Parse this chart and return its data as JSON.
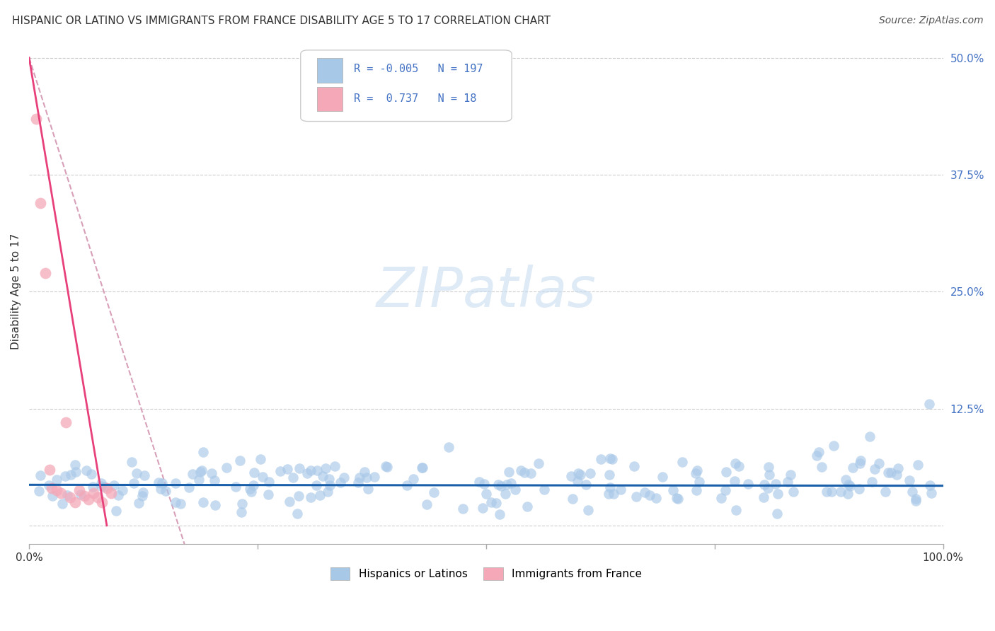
{
  "title": "HISPANIC OR LATINO VS IMMIGRANTS FROM FRANCE DISABILITY AGE 5 TO 17 CORRELATION CHART",
  "source": "Source: ZipAtlas.com",
  "ylabel": "Disability Age 5 to 17",
  "xlim": [
    0.0,
    1.0
  ],
  "ylim": [
    -0.02,
    0.52
  ],
  "yticks": [
    0.0,
    0.125,
    0.25,
    0.375,
    0.5
  ],
  "yticklabels": [
    "",
    "12.5%",
    "25.0%",
    "37.5%",
    "50.0%"
  ],
  "xticks": [
    0.0,
    0.25,
    0.5,
    0.75,
    1.0
  ],
  "xticklabels": [
    "0.0%",
    "",
    "",
    "",
    "100.0%"
  ],
  "blue_R": -0.005,
  "blue_N": 197,
  "pink_R": 0.737,
  "pink_N": 18,
  "blue_color": "#a8c8e8",
  "pink_color": "#f4a8b8",
  "blue_line_color": "#1a5faa",
  "pink_line_color": "#e8407a",
  "pink_dash_color": "#d8a0b8",
  "legend_blue_label": "Hispanics or Latinos",
  "legend_pink_label": "Immigrants from France",
  "grid_color": "#cccccc",
  "background_color": "#ffffff",
  "tick_color": "#4472c4",
  "title_color": "#333333",
  "watermark_color": "#c8ddf0"
}
